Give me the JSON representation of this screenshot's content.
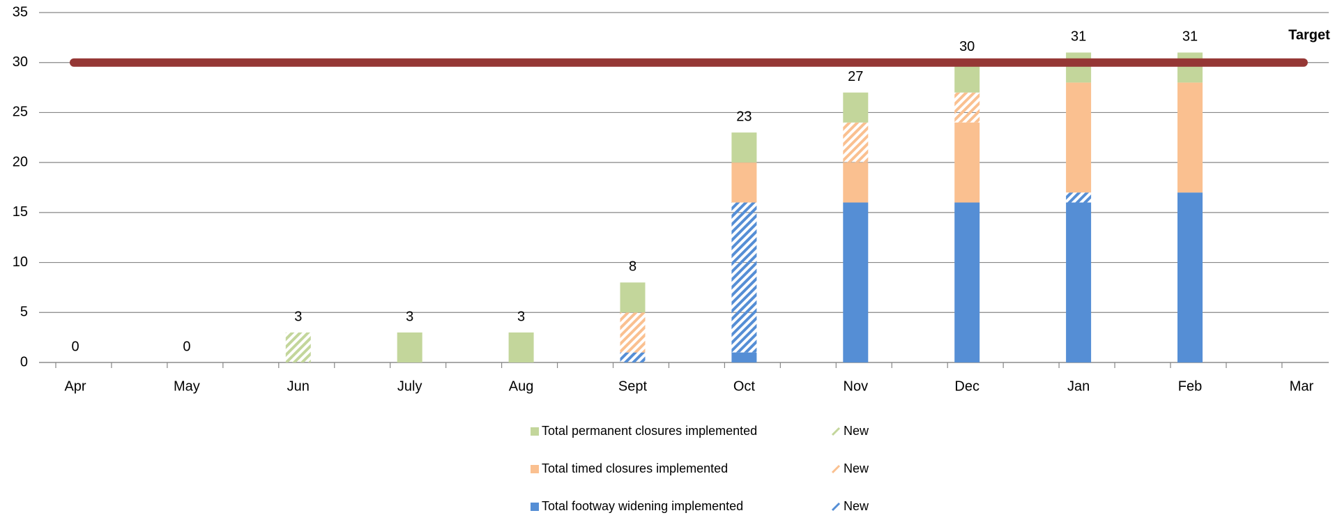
{
  "chart_data": {
    "type": "stacked_bar",
    "categories": [
      "Apr",
      "May",
      "Jun",
      "July",
      "Aug",
      "Sept",
      "Oct",
      "Nov",
      "Dec",
      "Jan",
      "Feb",
      "Mar"
    ],
    "series": [
      {
        "name": "Total footway widening implemented",
        "color": "#558ed5",
        "pattern": "solid",
        "values": [
          0,
          0,
          0,
          0,
          0,
          0,
          1,
          16,
          16,
          16,
          17,
          null
        ]
      },
      {
        "name": "New",
        "color": "#558ed5",
        "pattern": "hatch",
        "values": [
          0,
          0,
          0,
          0,
          0,
          1,
          15,
          0,
          0,
          1,
          0,
          null
        ]
      },
      {
        "name": "Total timed closures implemented",
        "color": "#fac090",
        "pattern": "solid",
        "values": [
          0,
          0,
          0,
          0,
          0,
          0,
          4,
          4,
          8,
          11,
          11,
          null
        ]
      },
      {
        "name": "New",
        "color": "#fac090",
        "pattern": "hatch",
        "values": [
          0,
          0,
          0,
          0,
          0,
          4,
          0,
          4,
          3,
          0,
          0,
          null
        ]
      },
      {
        "name": "Total permanent closures implemented",
        "color": "#c3d69b",
        "pattern": "solid",
        "values": [
          0,
          0,
          0,
          3,
          3,
          3,
          3,
          3,
          3,
          3,
          3,
          null
        ]
      },
      {
        "name": "New",
        "color": "#c3d69b",
        "pattern": "hatch",
        "values": [
          0,
          0,
          3,
          0,
          0,
          0,
          0,
          0,
          0,
          0,
          0,
          null
        ]
      }
    ],
    "totals": [
      0,
      0,
      3,
      3,
      3,
      8,
      23,
      27,
      30,
      31,
      31,
      null
    ],
    "target": {
      "label": "Target",
      "value": 30,
      "color": "#953735"
    },
    "ylim": [
      0,
      35
    ],
    "yticks": [
      0,
      5,
      10,
      15,
      20,
      25,
      30,
      35
    ],
    "grid": true
  }
}
